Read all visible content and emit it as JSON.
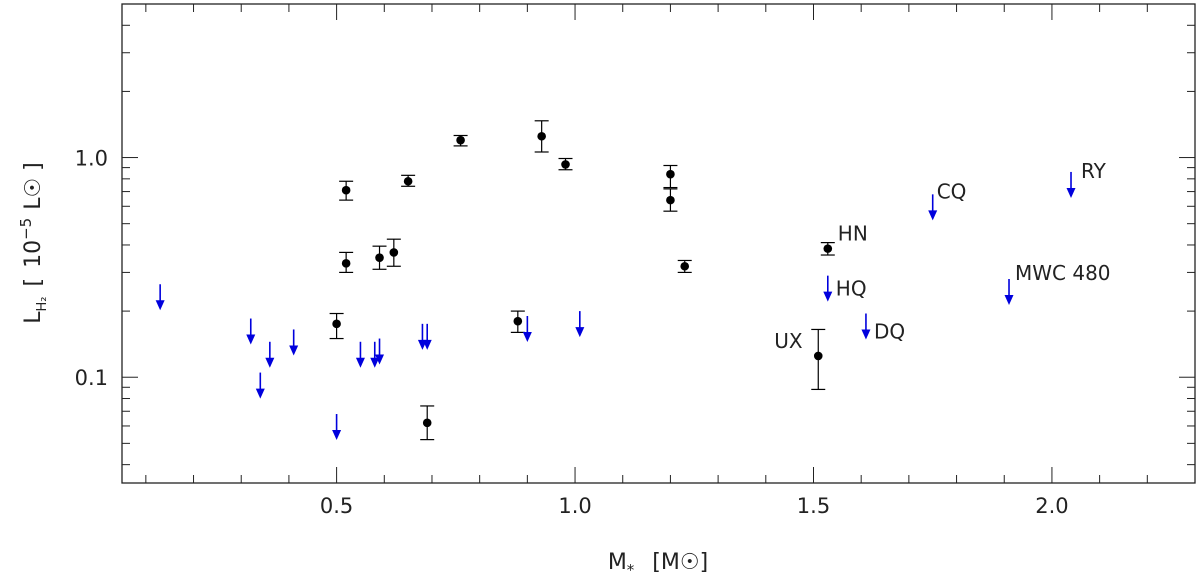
{
  "chart_data": {
    "type": "scatter",
    "title": "",
    "xlabel": "M* [M☉]",
    "ylabel": "L_H2 [ 10^-5 L☉ ]",
    "xlim": [
      0.05,
      2.3
    ],
    "ylim": [
      0.033,
      5.0
    ],
    "yscale": "log",
    "grid": false,
    "x_ticks": [
      {
        "value": 0.5,
        "label": "0.5"
      },
      {
        "value": 1.0,
        "label": "1.0"
      },
      {
        "value": 1.5,
        "label": "1.5"
      },
      {
        "value": 2.0,
        "label": "2.0"
      }
    ],
    "y_ticks": [
      {
        "value": 0.1,
        "label": "0.1"
      },
      {
        "value": 1.0,
        "label": "1.0"
      }
    ],
    "colors": {
      "detections": "#000000",
      "upper_limits": "#0000dd"
    },
    "detections": [
      {
        "x": 0.5,
        "y": 0.175,
        "err_lo": 0.15,
        "err_hi": 0.195
      },
      {
        "x": 0.52,
        "y": 0.71,
        "err_lo": 0.64,
        "err_hi": 0.78
      },
      {
        "x": 0.52,
        "y": 0.33,
        "err_lo": 0.3,
        "err_hi": 0.37
      },
      {
        "x": 0.59,
        "y": 0.35,
        "err_lo": 0.31,
        "err_hi": 0.395
      },
      {
        "x": 0.62,
        "y": 0.37,
        "err_lo": 0.32,
        "err_hi": 0.425
      },
      {
        "x": 0.65,
        "y": 0.78,
        "err_lo": 0.74,
        "err_hi": 0.83
      },
      {
        "x": 0.69,
        "y": 0.062,
        "err_lo": 0.052,
        "err_hi": 0.074
      },
      {
        "x": 0.76,
        "y": 1.2,
        "err_lo": 1.13,
        "err_hi": 1.26
      },
      {
        "x": 0.88,
        "y": 0.18,
        "err_lo": 0.16,
        "err_hi": 0.2
      },
      {
        "x": 0.93,
        "y": 1.25,
        "err_lo": 1.06,
        "err_hi": 1.47
      },
      {
        "x": 0.98,
        "y": 0.93,
        "err_lo": 0.88,
        "err_hi": 0.99
      },
      {
        "x": 1.2,
        "y": 0.84,
        "err_lo": 0.73,
        "err_hi": 0.92
      },
      {
        "x": 1.2,
        "y": 0.64,
        "err_lo": 0.57,
        "err_hi": 0.72
      },
      {
        "x": 1.23,
        "y": 0.32,
        "err_lo": 0.3,
        "err_hi": 0.34
      },
      {
        "x": 1.51,
        "y": 0.125,
        "err_lo": 0.088,
        "err_hi": 0.165,
        "label": "UX"
      },
      {
        "x": 1.53,
        "y": 0.385,
        "err_lo": 0.36,
        "err_hi": 0.41,
        "label": "HN"
      }
    ],
    "upper_limits": [
      {
        "x": 0.13,
        "y": 0.265
      },
      {
        "x": 0.32,
        "y": 0.185
      },
      {
        "x": 0.34,
        "y": 0.105
      },
      {
        "x": 0.36,
        "y": 0.145
      },
      {
        "x": 0.41,
        "y": 0.165
      },
      {
        "x": 0.5,
        "y": 0.068
      },
      {
        "x": 0.55,
        "y": 0.145
      },
      {
        "x": 0.58,
        "y": 0.145
      },
      {
        "x": 0.59,
        "y": 0.15
      },
      {
        "x": 0.68,
        "y": 0.175
      },
      {
        "x": 0.69,
        "y": 0.175
      },
      {
        "x": 0.9,
        "y": 0.19
      },
      {
        "x": 1.01,
        "y": 0.2
      },
      {
        "x": 1.53,
        "y": 0.29,
        "label": "HQ"
      },
      {
        "x": 1.61,
        "y": 0.195,
        "label": "DQ"
      },
      {
        "x": 1.75,
        "y": 0.68,
        "label": "CQ"
      },
      {
        "x": 1.91,
        "y": 0.28,
        "label": "MWC 480"
      },
      {
        "x": 2.04,
        "y": 0.86,
        "label": "RY"
      }
    ]
  }
}
